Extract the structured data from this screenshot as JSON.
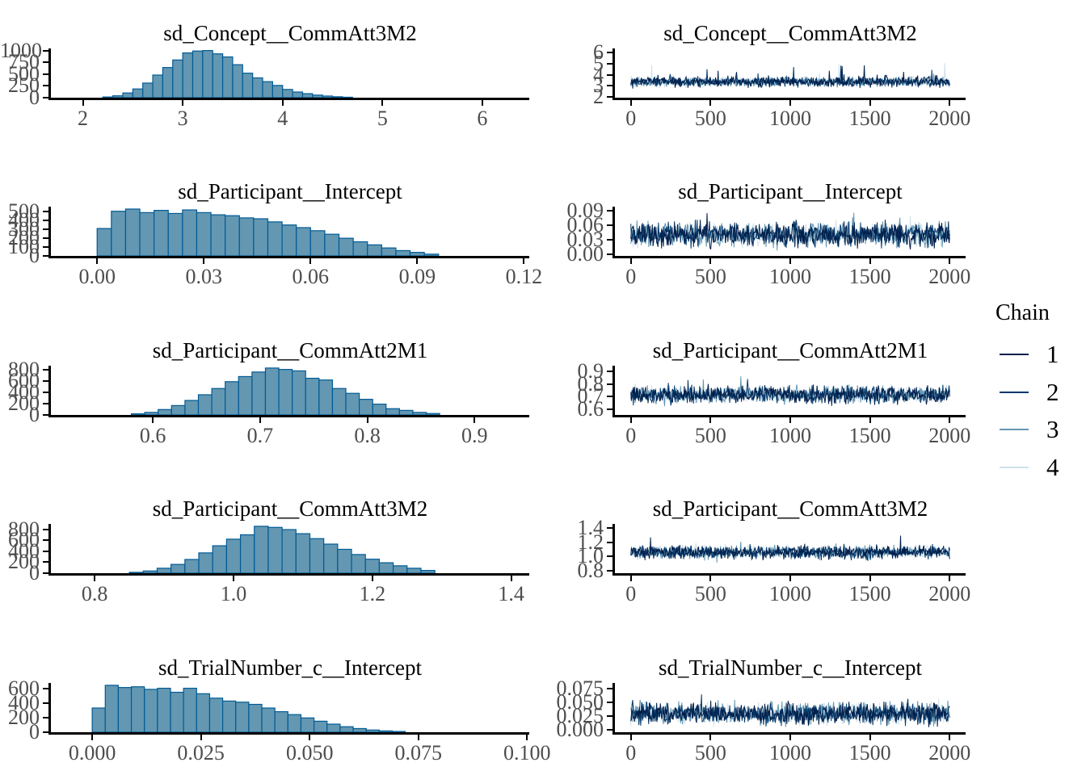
{
  "figure": {
    "background": "#ffffff",
    "hist_fill": "#6497b1",
    "hist_stroke": "#005b96",
    "axis_line_color": "#000000",
    "axis_text_color": "#4d4d4d",
    "title_color": "#000000"
  },
  "legend": {
    "title": "Chain",
    "items": [
      {
        "label": "1",
        "color": "#011f4b"
      },
      {
        "label": "2",
        "color": "#03396c"
      },
      {
        "label": "3",
        "color": "#6497b1"
      },
      {
        "label": "4",
        "color": "#d1e1ec"
      }
    ]
  },
  "chart_data": [
    {
      "kind": "histogram",
      "type": "bar",
      "title": "sd_Concept__CommAtt3M2",
      "xlim": [
        1.68,
        6.47
      ],
      "xticks": [
        2,
        3,
        4,
        5,
        6
      ],
      "xtick_labels": [
        "2",
        "3",
        "4",
        "5",
        "6"
      ],
      "ylim": [
        0,
        1045
      ],
      "yticks": [
        0,
        250,
        500,
        750,
        1000
      ],
      "ytick_labels": [
        "0",
        "250",
        "500",
        "750",
        "1000"
      ],
      "bin_start": 2.2,
      "bin_width": 0.1,
      "counts": [
        15,
        40,
        100,
        185,
        310,
        480,
        640,
        800,
        950,
        990,
        1000,
        930,
        865,
        700,
        520,
        420,
        340,
        260,
        175,
        120,
        85,
        55,
        35,
        20,
        10
      ]
    },
    {
      "kind": "trace",
      "type": "line",
      "title": "sd_Concept__CommAtt3M2",
      "xlim": [
        -100,
        2100
      ],
      "xticks": [
        0,
        500,
        1000,
        1500,
        2000
      ],
      "xtick_labels": [
        "0",
        "500",
        "1000",
        "1500",
        "2000"
      ],
      "ylim": [
        1.9,
        6.4
      ],
      "yticks": [
        2,
        3,
        4,
        5,
        6
      ],
      "ytick_labels": [
        "2",
        "3",
        "4",
        "5",
        "6"
      ],
      "x_range": [
        0,
        2000
      ],
      "n_points": 520,
      "chains": [
        1,
        2,
        3,
        4
      ],
      "center": 3.35,
      "sigma": 0.42,
      "spike": 2.6,
      "band": [
        2.35,
        6.05
      ]
    },
    {
      "kind": "histogram",
      "type": "bar",
      "title": "sd_Participant__Intercept",
      "xlim": [
        -0.013,
        0.1215
      ],
      "xticks": [
        0.0,
        0.03,
        0.06,
        0.09,
        0.12
      ],
      "xtick_labels": [
        "0.00",
        "0.03",
        "0.06",
        "0.09",
        "0.12"
      ],
      "ylim": [
        0,
        557
      ],
      "yticks": [
        0,
        100,
        200,
        300,
        400,
        500
      ],
      "ytick_labels": [
        "0",
        "100",
        "200",
        "300",
        "400",
        "500"
      ],
      "bin_start": 0.0,
      "bin_width": 0.004,
      "counts": [
        310,
        505,
        530,
        490,
        515,
        480,
        520,
        490,
        465,
        455,
        430,
        420,
        385,
        350,
        320,
        285,
        245,
        200,
        160,
        125,
        90,
        60,
        40,
        20
      ]
    },
    {
      "kind": "trace",
      "type": "line",
      "title": "sd_Participant__Intercept",
      "xlim": [
        -100,
        2100
      ],
      "xticks": [
        0,
        500,
        1000,
        1500,
        2000
      ],
      "xtick_labels": [
        "0",
        "500",
        "1000",
        "1500",
        "2000"
      ],
      "ylim": [
        -0.004,
        0.0975
      ],
      "yticks": [
        0.0,
        0.03,
        0.06,
        0.09
      ],
      "ytick_labels": [
        "0.00",
        "0.03",
        "0.06",
        "0.09"
      ],
      "x_range": [
        0,
        2000
      ],
      "n_points": 520,
      "chains": [
        1,
        2,
        3,
        4
      ],
      "center": 0.04,
      "sigma": 0.022,
      "spike": 0.05,
      "band": [
        0.002,
        0.0945
      ]
    },
    {
      "kind": "histogram",
      "type": "bar",
      "title": "sd_Participant__CommAtt2M1",
      "xlim": [
        0.505,
        0.951
      ],
      "xticks": [
        0.6,
        0.7,
        0.8,
        0.9
      ],
      "xtick_labels": [
        "0.6",
        "0.7",
        "0.8",
        "0.9"
      ],
      "ylim": [
        0,
        866
      ],
      "yticks": [
        0,
        200,
        400,
        600,
        800
      ],
      "ytick_labels": [
        "0",
        "200",
        "400",
        "600",
        "800"
      ],
      "bin_start": 0.58,
      "bin_width": 0.0125,
      "counts": [
        20,
        45,
        95,
        165,
        255,
        355,
        465,
        585,
        675,
        755,
        825,
        800,
        775,
        645,
        615,
        465,
        380,
        275,
        190,
        110,
        80,
        45,
        25
      ]
    },
    {
      "kind": "trace",
      "type": "line",
      "title": "sd_Participant__CommAtt2M1",
      "xlim": [
        -100,
        2100
      ],
      "xticks": [
        0,
        500,
        1000,
        1500,
        2000
      ],
      "xtick_labels": [
        "0",
        "500",
        "1000",
        "1500",
        "2000"
      ],
      "ylim": [
        0.553,
        0.948
      ],
      "yticks": [
        0.6,
        0.7,
        0.8,
        0.9
      ],
      "ytick_labels": [
        "0.6",
        "0.7",
        "0.8",
        "0.9"
      ],
      "x_range": [
        0,
        2000
      ],
      "n_points": 520,
      "chains": [
        1,
        2,
        3,
        4
      ],
      "center": 0.715,
      "sigma": 0.06,
      "spike": 0.16,
      "band": [
        0.585,
        0.925
      ]
    },
    {
      "kind": "histogram",
      "type": "bar",
      "title": "sd_Participant__CommAtt3M2",
      "xlim": [
        0.737,
        1.426
      ],
      "xticks": [
        0.8,
        1.0,
        1.2,
        1.4
      ],
      "xtick_labels": [
        "0.8",
        "1.0",
        "1.2",
        "1.4"
      ],
      "ylim": [
        0,
        898
      ],
      "yticks": [
        0,
        200,
        400,
        600,
        800
      ],
      "ytick_labels": [
        "0",
        "200",
        "400",
        "600",
        "800"
      ],
      "bin_start": 0.85,
      "bin_width": 0.02,
      "counts": [
        15,
        40,
        90,
        160,
        250,
        370,
        500,
        620,
        700,
        855,
        835,
        795,
        720,
        630,
        530,
        435,
        340,
        255,
        190,
        135,
        90,
        50
      ]
    },
    {
      "kind": "trace",
      "type": "line",
      "title": "sd_Participant__CommAtt3M2",
      "xlim": [
        -100,
        2100
      ],
      "xticks": [
        0,
        500,
        1000,
        1500,
        2000
      ],
      "xtick_labels": [
        "0",
        "500",
        "1000",
        "1500",
        "2000"
      ],
      "ylim": [
        0.765,
        1.46
      ],
      "yticks": [
        0.8,
        1.0,
        1.2,
        1.4
      ],
      "ytick_labels": [
        "0.8",
        "1.0",
        "1.2",
        "1.4"
      ],
      "x_range": [
        0,
        2000
      ],
      "n_points": 520,
      "chains": [
        1,
        2,
        3,
        4
      ],
      "center": 1.06,
      "sigma": 0.085,
      "spike": 0.22,
      "band": [
        0.86,
        1.37
      ]
    },
    {
      "kind": "histogram",
      "type": "bar",
      "title": "sd_TrialNumber_c__Intercept",
      "xlim": [
        -0.0095,
        0.1005
      ],
      "xticks": [
        0.0,
        0.025,
        0.05,
        0.075,
        0.1
      ],
      "xtick_labels": [
        "0.000",
        "0.025",
        "0.050",
        "0.075",
        "0.100"
      ],
      "ylim": [
        0,
        672
      ],
      "yticks": [
        0,
        200,
        400,
        600
      ],
      "ytick_labels": [
        "0",
        "200",
        "400",
        "600"
      ],
      "bin_start": 0.0,
      "bin_width": 0.003,
      "counts": [
        330,
        640,
        610,
        620,
        585,
        600,
        545,
        600,
        525,
        465,
        425,
        410,
        380,
        330,
        280,
        240,
        195,
        150,
        110,
        75,
        50,
        30,
        18,
        10
      ]
    },
    {
      "kind": "trace",
      "type": "line",
      "title": "sd_TrialNumber_c__Intercept",
      "xlim": [
        -100,
        2100
      ],
      "xticks": [
        0,
        500,
        1000,
        1500,
        2000
      ],
      "xtick_labels": [
        "0",
        "500",
        "1000",
        "1500",
        "2000"
      ],
      "ylim": [
        -0.004,
        0.0855
      ],
      "yticks": [
        0.0,
        0.025,
        0.05,
        0.075
      ],
      "ytick_labels": [
        "0.000",
        "0.025",
        "0.050",
        "0.075"
      ],
      "x_range": [
        0,
        2000
      ],
      "n_points": 520,
      "chains": [
        1,
        2,
        3,
        4
      ],
      "center": 0.03,
      "sigma": 0.018,
      "spike": 0.045,
      "band": [
        0.001,
        0.081
      ]
    }
  ]
}
